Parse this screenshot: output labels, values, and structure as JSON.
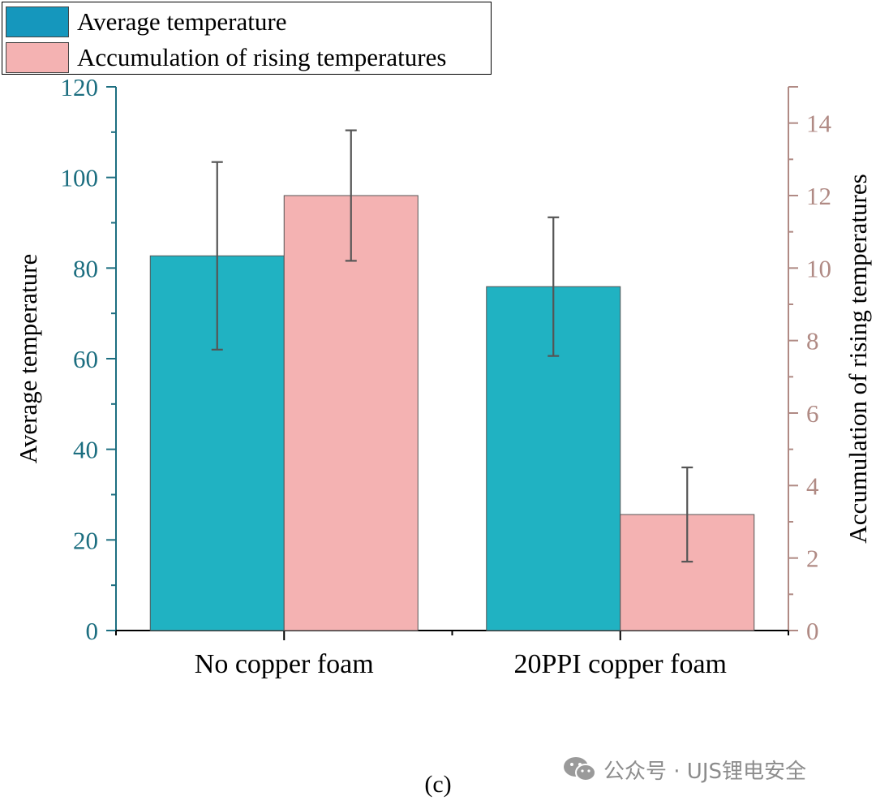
{
  "chart_data": {
    "type": "bar",
    "categories": [
      "No copper foam",
      "20PPI copper foam"
    ],
    "series": [
      {
        "name": "Average temperature",
        "axis": "left",
        "values": [
          82.7,
          75.9
        ],
        "error": [
          [
            62.0,
            103.4
          ],
          [
            60.6,
            91.2
          ]
        ],
        "color": "#20b2c2"
      },
      {
        "name": "Accumulation of rising temperatures",
        "axis": "right",
        "values": [
          12.0,
          3.2
        ],
        "error": [
          [
            10.2,
            13.8
          ],
          [
            1.9,
            4.5
          ]
        ],
        "color": "#f4b2b2"
      }
    ],
    "y_left": {
      "label": "Average temperature",
      "lim": [
        0,
        120
      ],
      "ticks": [
        0,
        20,
        40,
        60,
        80,
        100,
        120
      ],
      "color": "#1c6e80"
    },
    "y_right": {
      "label": "Accumulation of rising temperatures",
      "lim": [
        0,
        15
      ],
      "ticks": [
        0,
        2,
        4,
        6,
        8,
        10,
        12,
        14
      ],
      "color": "#b08a84"
    },
    "legend_position": "top-left",
    "grid": false
  },
  "caption": "(c)",
  "watermark": "公众号 · UJS锂电安全",
  "colors": {
    "legend_average": "#1597bd",
    "legend_accumulation": "#f4b2b2",
    "error_bar": "#555555"
  }
}
